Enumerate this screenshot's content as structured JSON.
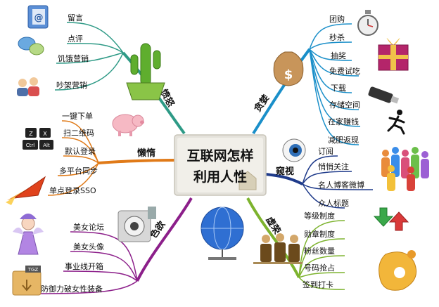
{
  "center": {
    "line1": "互联网怎样",
    "line2": "利用人性"
  },
  "branches": {
    "anger": {
      "label": "愤怒",
      "color": "#2e9a86",
      "items": [
        "留言",
        "点评",
        "饥饿营销",
        "吵架营销"
      ]
    },
    "lazy": {
      "label": "懒惰",
      "color": "#e07a18",
      "items": [
        "一键下单",
        "扫二维码",
        "默认登录",
        "多平台同步",
        "单点登录SSO"
      ]
    },
    "lust": {
      "label": "色欲",
      "color": "#8c1f8a",
      "items": [
        "美女论坛",
        "美女头像",
        "事业线开箱",
        "防御力破女性装备"
      ]
    },
    "greed": {
      "label": "贪婪",
      "color": "#1a8fc9",
      "items": [
        "团购",
        "秒杀",
        "抽奖",
        "免费试吃",
        "下载",
        "存储空间",
        "在家赚钱",
        "减肥返现"
      ]
    },
    "peep": {
      "label": "窥视",
      "color": "#1e3a8a",
      "items": [
        "订阅",
        "悄悄关注",
        "名人博客微博",
        "众人标题"
      ]
    },
    "vanity": {
      "label": "虚荣",
      "color": "#7db32e",
      "items": [
        "等级制度",
        "勋章制度",
        "粉丝数量",
        "号码抢占",
        "签到打卡"
      ]
    }
  },
  "icons": {
    "keyboard": {
      "keys": [
        "Z",
        "X",
        "Ctrl",
        "Alt"
      ]
    },
    "archive": {
      "tag": "TGZ"
    }
  }
}
